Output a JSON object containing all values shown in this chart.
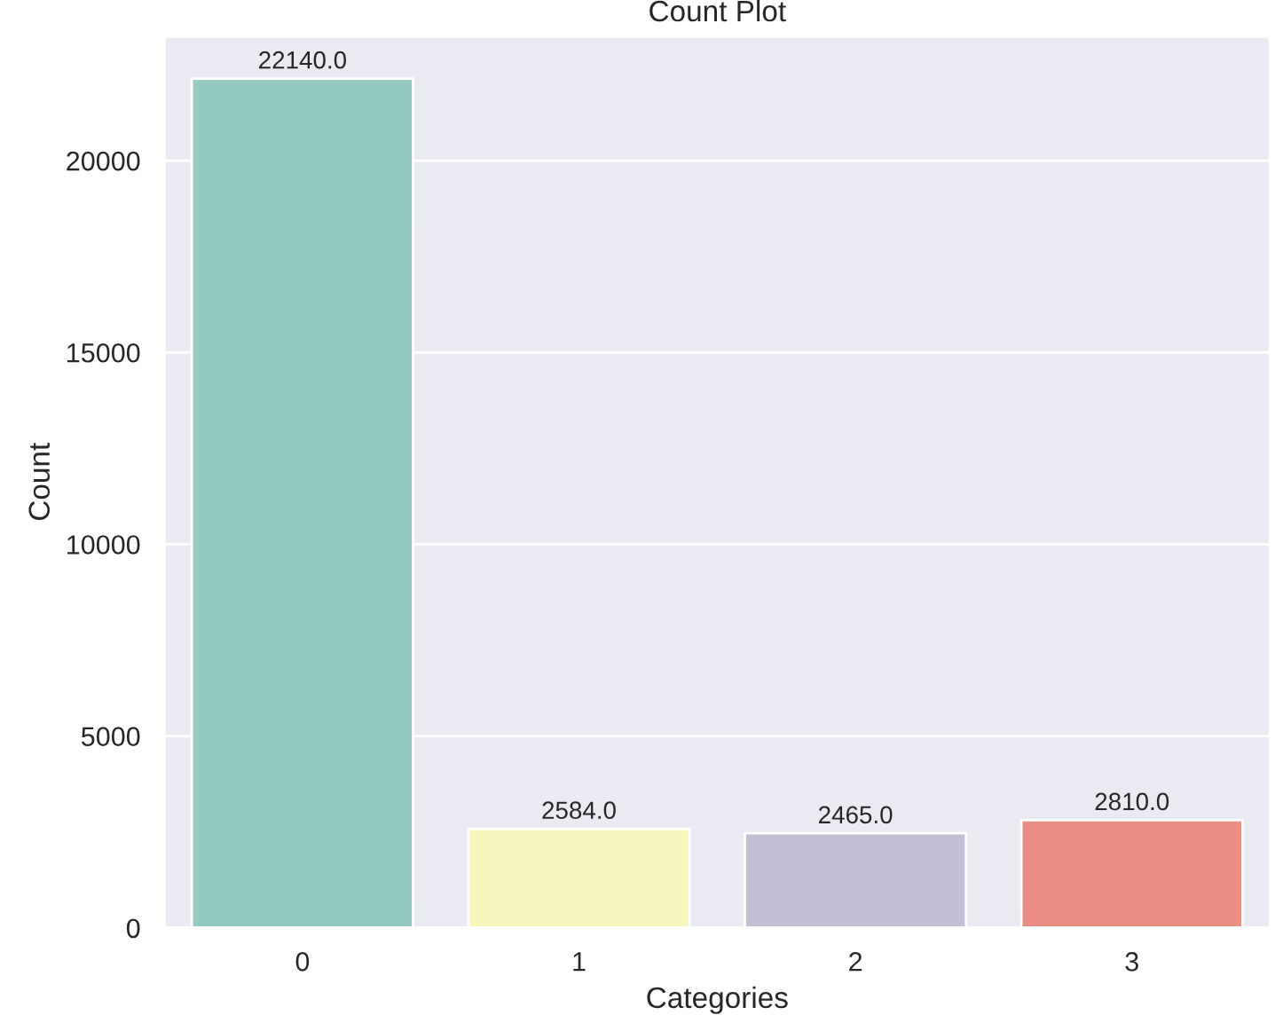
{
  "chart_data": {
    "type": "bar",
    "title": "Count Plot",
    "xlabel": "Categories",
    "ylabel": "Count",
    "categories": [
      "0",
      "1",
      "2",
      "3"
    ],
    "values": [
      22140,
      2584,
      2465,
      2810
    ],
    "colors": [
      "#96cac1",
      "#f6f6bc",
      "#c1bed6",
      "#ea8e83"
    ],
    "value_labels": [
      "22140.0",
      "2584.0",
      "2465.0",
      "2810.0"
    ],
    "ylim": [
      0,
      23247
    ],
    "yticks": [
      0,
      5000,
      10000,
      15000,
      20000
    ],
    "grid": "y"
  }
}
